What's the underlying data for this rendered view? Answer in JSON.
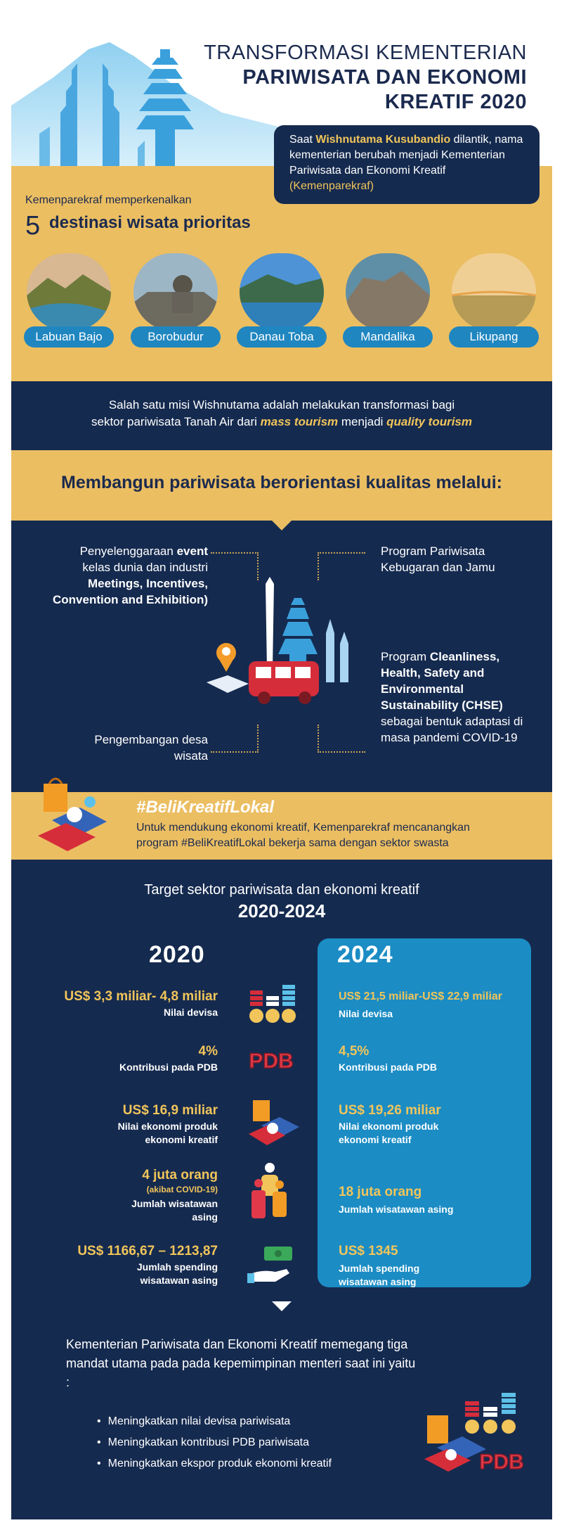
{
  "title": {
    "line1": "TRANSFORMASI KEMENTERIAN",
    "line2": "PARIWISATA DAN EKONOMI",
    "line3": "KREATIF 2020"
  },
  "intro": {
    "pre": "Saat ",
    "name": "Wishnutama Kusubandio",
    "mid": " dilantik, nama kementerian berubah menjadi Kementerian Pariwisata dan Ekonomi Kreatif ",
    "abbr": "(Kemenparekraf)"
  },
  "destinations": {
    "lead": "Kemenparekraf memperkenalkan",
    "count": "5",
    "heading": "destinasi wisata prioritas",
    "items": [
      "Labuan Bajo",
      "Borobudur",
      "Danau Toba",
      "Mandalika",
      "Likupang"
    ]
  },
  "mission": {
    "line1": "Salah satu misi Wishnutama adalah melakukan transformasi bagi",
    "pre2": "sektor pariwisata Tanah Air dari ",
    "mass": "mass tourism",
    "mid2": " menjadi ",
    "quality": "quality tourism"
  },
  "build_heading": "Membangun pariwisata berorientasi kualitas melalui:",
  "programs": {
    "event_pre": "Penyelenggaraan ",
    "event_b": "event",
    "event_mid": "kelas dunia dan industri",
    "mice": "Meetings, Incentives, Convention and Exhibition)",
    "wellness": "Program Pariwisata Kebugaran dan Jamu",
    "chse_pre": "Program ",
    "chse_b": "Cleanliness, Health, Safety and Environmental Sustainability (CHSE)",
    "chse_post": "sebagai bentuk adaptasi di masa pandemi COVID-19",
    "village": "Pengembangan desa wisata"
  },
  "beli": {
    "tag": "#BeliKreatifLokal",
    "text1": "Untuk mendukung ekonomi kreatif, Kemenparekraf mencanangkan",
    "text2": "program #BeliKreatifLokal bekerja sama dengan sektor swasta"
  },
  "targets": {
    "heading": "Target sektor pariwisata dan ekonomi kreatif",
    "period": "2020-2024",
    "year_a": "2020",
    "year_b": "2024",
    "rows": [
      {
        "a_value": "US$ 3,3 miliar- 4,8 miliar",
        "a_label": "Nilai devisa",
        "b_value": "US$ 21,5 miliar-US$ 22,9 miliar",
        "b_label": "Nilai devisa"
      },
      {
        "a_value": "4%",
        "a_label": "Kontribusi pada PDB",
        "b_value": "4,5%",
        "b_label": "Kontribusi pada PDB"
      },
      {
        "a_value": "US$ 16,9 miliar",
        "a_label": "Nilai ekonomi produk ekonomi kreatif",
        "b_value": "US$ 19,26 miliar",
        "b_label": "Nilai ekonomi produk ekonomi kreatif"
      },
      {
        "a_value": "4 juta orang",
        "a_note": "(akibat COVID-19)",
        "a_label": "Jumlah wisatawan asing",
        "b_value": "18 juta orang",
        "b_label": "Jumlah wisatawan asing"
      },
      {
        "a_value": "US$ 1166,67 – 1213,87",
        "a_label": "Jumlah spending wisatawan asing",
        "b_value": "US$ 1345",
        "b_label": "Jumlah spending wisatawan asing"
      }
    ],
    "pdb_icon_text": "PDB"
  },
  "mandate": {
    "intro": "Kementerian Pariwisata dan Ekonomi Kreatif memegang tiga mandat utama pada pada kepemimpinan menteri saat ini yaitu :",
    "items": [
      "Meningkatkan nilai devisa pariwisata",
      "Meningkatkan kontribusi PDB pariwisata",
      "Meningkatkan ekspor produk ekonomi kreatif"
    ],
    "icon_text": "PDB"
  },
  "colors": {
    "navy": "#152a4f",
    "gold": "#ebbe62",
    "blue": "#1f86c0",
    "yellow_text": "#f1c55a"
  }
}
